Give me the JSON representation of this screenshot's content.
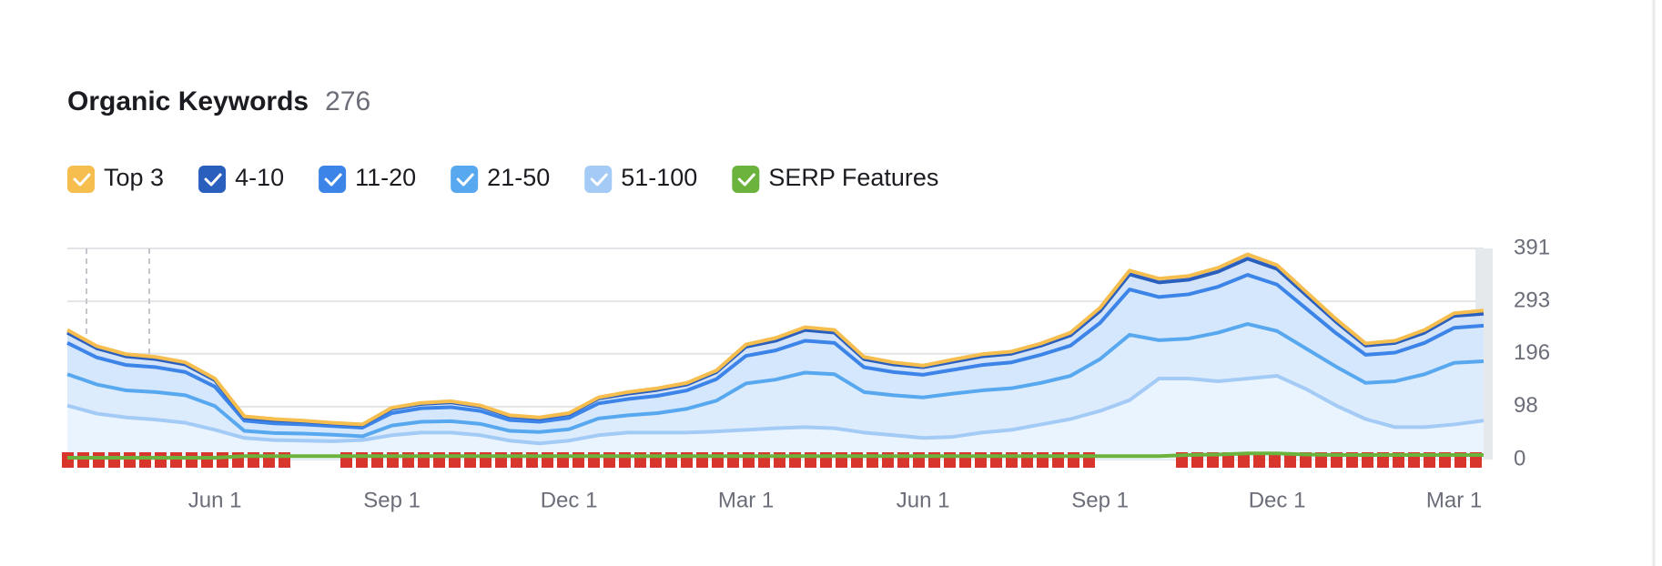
{
  "chart_data": {
    "type": "area",
    "title": "Organic Keywords",
    "title_count": 276,
    "stacked": true,
    "categories": [
      null,
      null,
      null,
      null,
      null,
      "Jun 1",
      null,
      null,
      null,
      null,
      null,
      "Sep 1",
      null,
      null,
      null,
      null,
      null,
      "Dec 1",
      null,
      null,
      null,
      null,
      null,
      "Mar 1",
      null,
      null,
      null,
      null,
      null,
      "Jun 1",
      null,
      null,
      null,
      null,
      null,
      "Sep 1",
      null,
      null,
      null,
      null,
      null,
      "Dec 1",
      null,
      null,
      null,
      null,
      null,
      "Mar 1",
      null
    ],
    "ylim": [
      0,
      391
    ],
    "yticks": [
      0,
      98,
      196,
      293,
      391
    ],
    "grid": true,
    "series": [
      {
        "name": "Top 3",
        "color": "#f6bd4f",
        "values": [
          5,
          4,
          4,
          4,
          4,
          3,
          2,
          2,
          1,
          1,
          1,
          2,
          2,
          2,
          2,
          2,
          2,
          2,
          2,
          3,
          3,
          3,
          3,
          4,
          5,
          5,
          5,
          4,
          4,
          3,
          4,
          4,
          4,
          4,
          5,
          6,
          7,
          7,
          7,
          7,
          8,
          7,
          6,
          5,
          4,
          4,
          5,
          5,
          6
        ]
      },
      {
        "name": "4-10",
        "color": "#2a5fbd",
        "values": [
          19,
          17,
          16,
          15,
          14,
          12,
          6,
          6,
          6,
          5,
          5,
          8,
          8,
          9,
          8,
          7,
          6,
          7,
          9,
          10,
          11,
          11,
          13,
          17,
          18,
          20,
          19,
          15,
          14,
          14,
          15,
          16,
          16,
          17,
          19,
          22,
          28,
          27,
          27,
          28,
          30,
          29,
          25,
          21,
          17,
          18,
          19,
          22,
          22
        ]
      },
      {
        "name": "11-20",
        "color": "#3c84e8",
        "values": [
          58,
          50,
          47,
          46,
          43,
          36,
          19,
          18,
          17,
          16,
          16,
          23,
          25,
          26,
          24,
          20,
          19,
          21,
          28,
          30,
          32,
          34,
          40,
          51,
          54,
          59,
          58,
          46,
          43,
          42,
          44,
          47,
          48,
          52,
          56,
          67,
          84,
          80,
          82,
          85,
          91,
          86,
          74,
          62,
          52,
          53,
          58,
          65,
          66
        ]
      },
      {
        "name": "21-50",
        "color": "#58a8f0",
        "values": [
          58,
          54,
          50,
          51,
          51,
          44,
          13,
          13,
          13,
          12,
          7,
          18,
          20,
          21,
          21,
          18,
          21,
          21,
          31,
          32,
          36,
          44,
          57,
          86,
          90,
          101,
          100,
          75,
          74,
          75,
          80,
          78,
          77,
          77,
          80,
          96,
          121,
          71,
          74,
          90,
          101,
          83,
          75,
          72,
          67,
          85,
          98,
          114,
          110
        ]
      },
      {
        "name": "51-100",
        "color": "#a3cbf6",
        "values": [
          100,
          85,
          78,
          74,
          68,
          55,
          40,
          36,
          35,
          34,
          36,
          45,
          50,
          50,
          45,
          35,
          30,
          35,
          45,
          50,
          50,
          50,
          52,
          55,
          58,
          60,
          58,
          50,
          45,
          40,
          42,
          50,
          55,
          65,
          75,
          90,
          110,
          150,
          150,
          145,
          150,
          155,
          130,
          100,
          75,
          60,
          60,
          65,
          72
        ]
      },
      {
        "name": "SERP Features",
        "color": "#6cb33e",
        "overlay": true,
        "values": [
          0,
          0,
          0,
          0,
          0,
          0,
          3,
          3,
          3,
          3,
          3,
          3,
          3,
          3,
          3,
          3,
          3,
          3,
          3,
          3,
          3,
          3,
          3,
          3,
          3,
          3,
          3,
          3,
          3,
          3,
          3,
          3,
          3,
          3,
          3,
          3,
          3,
          3,
          5,
          6,
          8,
          8,
          6,
          5,
          5,
          5,
          5,
          5,
          5
        ]
      }
    ]
  }
}
